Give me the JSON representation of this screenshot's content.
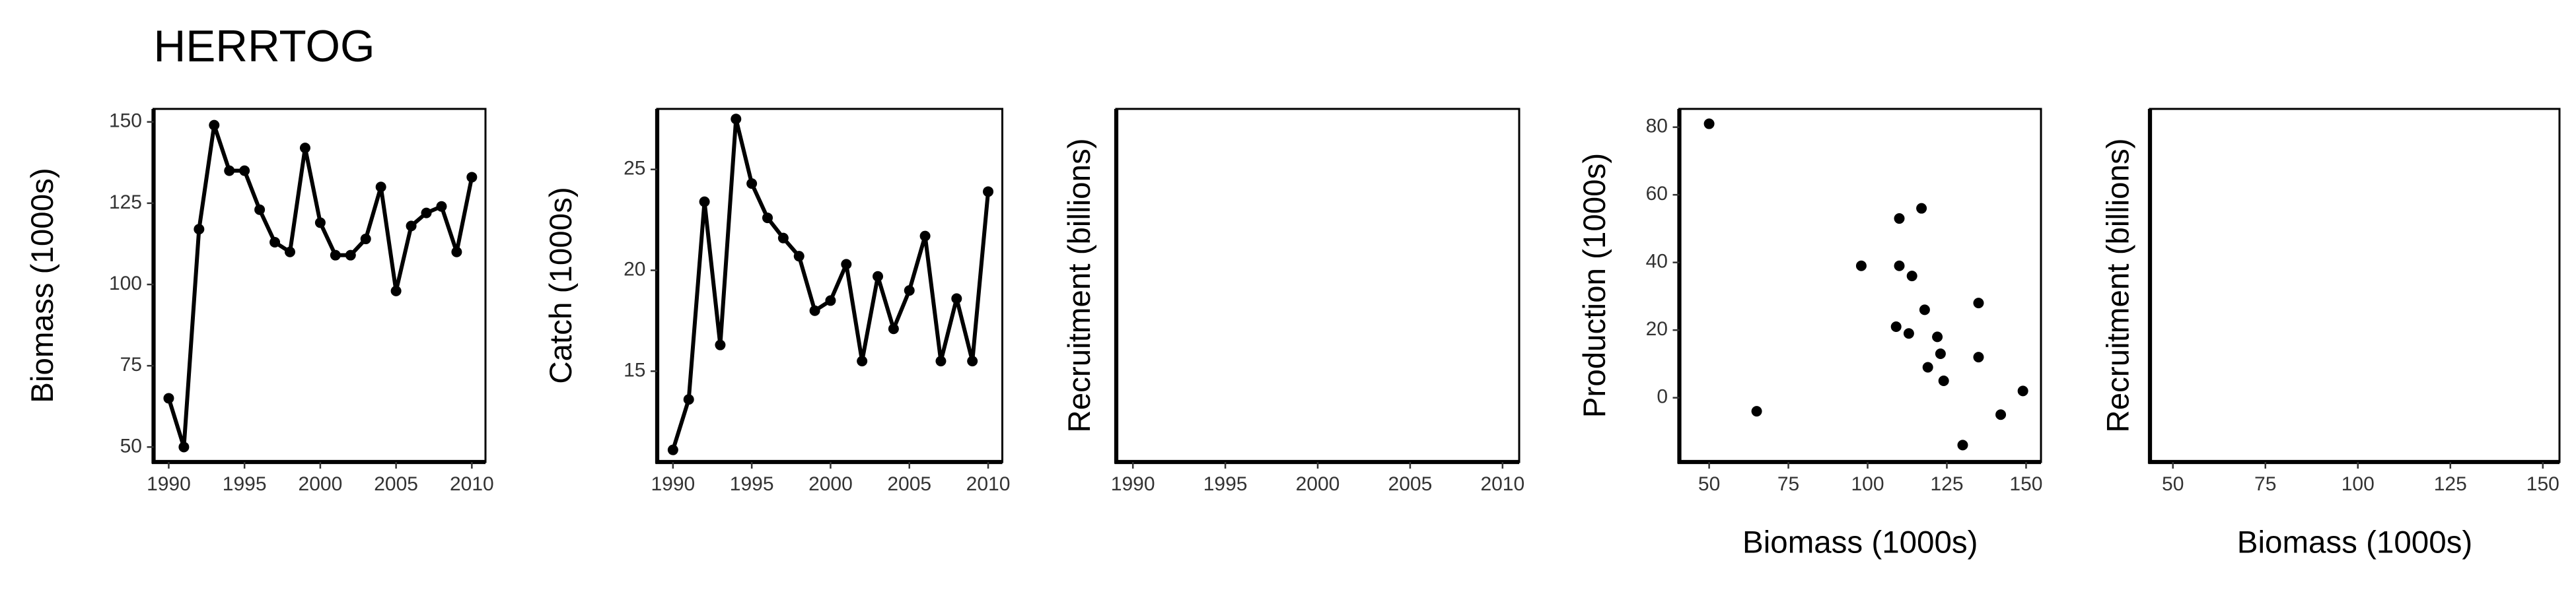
{
  "title": "HERRTOG",
  "chart_data": [
    {
      "type": "line",
      "ylabel": "Biomass (1000s)",
      "x": [
        1990,
        1991,
        1992,
        1993,
        1994,
        1995,
        1996,
        1997,
        1998,
        1999,
        2000,
        2001,
        2002,
        2003,
        2004,
        2005,
        2006,
        2007,
        2008,
        2009,
        2010
      ],
      "series": [
        {
          "color": "#000000",
          "values": [
            65,
            50,
            117,
            149,
            135,
            135,
            123,
            113,
            110,
            142,
            119,
            109,
            109,
            114,
            130,
            98,
            118,
            122,
            124,
            110,
            133
          ]
        }
      ],
      "xlim": [
        1989,
        2010.9
      ],
      "xticks": [
        1990,
        1995,
        2000,
        2005,
        2010
      ],
      "ylim": [
        45.4,
        154
      ],
      "yticks": [
        50,
        75,
        100,
        125,
        150
      ]
    },
    {
      "type": "line",
      "ylabel": "Catch (1000s)",
      "x": [
        1990,
        1991,
        1992,
        1993,
        1994,
        1995,
        1996,
        1997,
        1998,
        1999,
        2000,
        2001,
        2002,
        2003,
        2004,
        2005,
        2006,
        2007,
        2008,
        2009,
        2010
      ],
      "series": [
        {
          "color": "#000000",
          "values": [
            11.1,
            13.6,
            23.4,
            16.3,
            27.5,
            24.3,
            22.6,
            21.6,
            20.7,
            18.0,
            18.5,
            20.3,
            15.5,
            19.7,
            17.1,
            19.0,
            21.7,
            15.5,
            18.6,
            15.5,
            23.9
          ]
        }
      ],
      "xlim": [
        1989,
        2010.9
      ],
      "xticks": [
        1990,
        1995,
        2000,
        2005,
        2010
      ],
      "ylim": [
        10.5,
        28
      ],
      "yticks": [
        15,
        20,
        25
      ]
    },
    {
      "type": "line",
      "ylabel": "Recruitment (billions)",
      "xlim": [
        1989.1,
        2010.9
      ],
      "xticks": [
        1990,
        1995,
        2000,
        2005,
        2010
      ]
    },
    {
      "type": "scatter",
      "xlabel": "Biomass (1000s)",
      "ylabel": "Production (1000s)",
      "x": [
        50,
        65,
        98,
        109,
        110,
        110,
        113,
        114,
        117,
        118,
        119,
        122,
        123,
        124,
        130,
        135,
        135,
        142,
        149
      ],
      "values": [
        81,
        -4,
        39,
        21,
        53,
        39,
        19,
        36,
        56,
        26,
        9,
        18,
        13,
        5,
        -14,
        28,
        12,
        -5,
        2
      ],
      "color": "#000000",
      "xlim": [
        40.6,
        154.7
      ],
      "xticks": [
        50,
        75,
        100,
        125,
        150
      ],
      "ylim": [
        -19,
        85.4
      ],
      "yticks": [
        0,
        20,
        40,
        60,
        80
      ]
    },
    {
      "type": "scatter",
      "xlabel": "Biomass (1000s)",
      "ylabel": "Recruitment (billions)",
      "xlim": [
        43.8,
        154.5
      ],
      "xticks": [
        50,
        75,
        100,
        125,
        150
      ]
    }
  ]
}
